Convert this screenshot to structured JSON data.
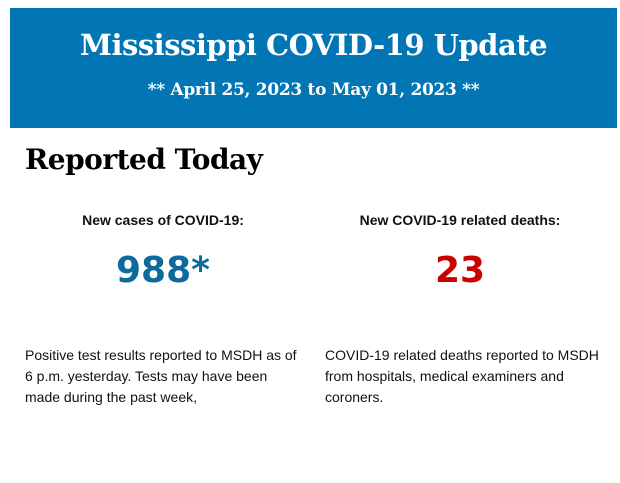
{
  "header": {
    "title": "Mississippi COVID-19 Update",
    "date_range": "** April 25, 2023 to May 01, 2023 **",
    "background_color": "#0276b4"
  },
  "section": {
    "title": "Reported Today"
  },
  "cases": {
    "label": "New cases of COVID-19:",
    "value": "988*",
    "color": "#0e6a9b",
    "description": "Positive test results reported to MSDH as of 6 p.m. yesterday. Tests may have been made during the past week,"
  },
  "deaths": {
    "label": "New COVID-19 related deaths:",
    "value": "23",
    "color": "#cc0000",
    "description": "COVID-19 related deaths reported to MSDH from hospitals, medical examiners and coroners."
  }
}
